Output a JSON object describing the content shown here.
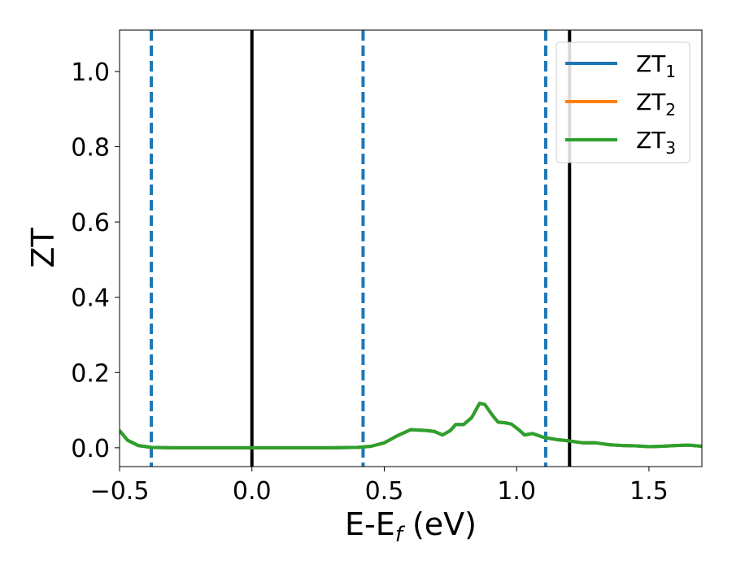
{
  "chart_data": {
    "type": "line",
    "title": "",
    "xlabel_main": "E-E",
    "xlabel_sub": "f",
    "xlabel_tail": " (eV)",
    "ylabel": "ZT",
    "xlim": [
      -0.5,
      1.7
    ],
    "ylim": [
      -0.05,
      1.11
    ],
    "xticks": [
      {
        "value": -0.5,
        "label": "−0.5"
      },
      {
        "value": 0.0,
        "label": "0.0"
      },
      {
        "value": 0.5,
        "label": "0.5"
      },
      {
        "value": 1.0,
        "label": "1.0"
      },
      {
        "value": 1.5,
        "label": "1.5"
      }
    ],
    "yticks": [
      {
        "value": 0.0,
        "label": "0.0"
      },
      {
        "value": 0.2,
        "label": "0.2"
      },
      {
        "value": 0.4,
        "label": "0.4"
      },
      {
        "value": 0.6,
        "label": "0.6"
      },
      {
        "value": 0.8,
        "label": "0.8"
      },
      {
        "value": 1.0,
        "label": "1.0"
      }
    ],
    "legend_position": "top-right",
    "grid": false,
    "series": [
      {
        "name": "ZT",
        "sub": "1",
        "color": "#1f77b4",
        "points": [
          [
            -0.5,
            0.046
          ],
          [
            -0.47,
            0.02
          ],
          [
            -0.43,
            0.006
          ],
          [
            -0.38,
            0.001
          ],
          [
            -0.3,
            0.0
          ],
          [
            0.0,
            0.0
          ],
          [
            0.3,
            0.0
          ],
          [
            0.4,
            0.001
          ],
          [
            0.45,
            0.004
          ],
          [
            0.5,
            0.013
          ],
          [
            0.55,
            0.032
          ],
          [
            0.6,
            0.048
          ],
          [
            0.63,
            0.047
          ],
          [
            0.66,
            0.046
          ],
          [
            0.69,
            0.043
          ],
          [
            0.72,
            0.034
          ],
          [
            0.75,
            0.046
          ],
          [
            0.77,
            0.062
          ],
          [
            0.8,
            0.062
          ],
          [
            0.83,
            0.08
          ],
          [
            0.86,
            0.118
          ],
          [
            0.88,
            0.115
          ],
          [
            0.91,
            0.085
          ],
          [
            0.93,
            0.068
          ],
          [
            0.96,
            0.066
          ],
          [
            0.98,
            0.063
          ],
          [
            1.01,
            0.047
          ],
          [
            1.03,
            0.034
          ],
          [
            1.06,
            0.038
          ],
          [
            1.1,
            0.028
          ],
          [
            1.15,
            0.022
          ],
          [
            1.2,
            0.018
          ],
          [
            1.25,
            0.013
          ],
          [
            1.3,
            0.013
          ],
          [
            1.35,
            0.008
          ],
          [
            1.4,
            0.006
          ],
          [
            1.45,
            0.005
          ],
          [
            1.5,
            0.003
          ],
          [
            1.55,
            0.004
          ],
          [
            1.6,
            0.006
          ],
          [
            1.65,
            0.007
          ],
          [
            1.7,
            0.004
          ]
        ]
      },
      {
        "name": "ZT",
        "sub": "2",
        "color": "#ff7f0e",
        "points": [
          [
            -0.5,
            0.046
          ],
          [
            -0.47,
            0.02
          ],
          [
            -0.43,
            0.006
          ],
          [
            -0.38,
            0.001
          ],
          [
            -0.3,
            0.0
          ],
          [
            0.0,
            0.0
          ],
          [
            0.3,
            0.0
          ],
          [
            0.4,
            0.001
          ],
          [
            0.45,
            0.004
          ],
          [
            0.5,
            0.013
          ],
          [
            0.55,
            0.032
          ],
          [
            0.6,
            0.048
          ],
          [
            0.63,
            0.047
          ],
          [
            0.66,
            0.046
          ],
          [
            0.69,
            0.043
          ],
          [
            0.72,
            0.034
          ],
          [
            0.75,
            0.046
          ],
          [
            0.77,
            0.062
          ],
          [
            0.8,
            0.062
          ],
          [
            0.83,
            0.08
          ],
          [
            0.86,
            0.118
          ],
          [
            0.88,
            0.115
          ],
          [
            0.91,
            0.085
          ],
          [
            0.93,
            0.068
          ],
          [
            0.96,
            0.066
          ],
          [
            0.98,
            0.063
          ],
          [
            1.01,
            0.047
          ],
          [
            1.03,
            0.034
          ],
          [
            1.06,
            0.038
          ],
          [
            1.1,
            0.028
          ],
          [
            1.15,
            0.022
          ],
          [
            1.2,
            0.018
          ],
          [
            1.25,
            0.013
          ],
          [
            1.3,
            0.013
          ],
          [
            1.35,
            0.008
          ],
          [
            1.4,
            0.006
          ],
          [
            1.45,
            0.005
          ],
          [
            1.5,
            0.003
          ],
          [
            1.55,
            0.004
          ],
          [
            1.6,
            0.006
          ],
          [
            1.65,
            0.007
          ],
          [
            1.7,
            0.004
          ]
        ]
      },
      {
        "name": "ZT",
        "sub": "3",
        "color": "#2ca02c",
        "points": [
          [
            -0.5,
            0.046
          ],
          [
            -0.47,
            0.02
          ],
          [
            -0.43,
            0.006
          ],
          [
            -0.38,
            0.001
          ],
          [
            -0.3,
            0.0
          ],
          [
            0.0,
            0.0
          ],
          [
            0.3,
            0.0
          ],
          [
            0.4,
            0.001
          ],
          [
            0.45,
            0.004
          ],
          [
            0.5,
            0.013
          ],
          [
            0.55,
            0.032
          ],
          [
            0.6,
            0.048
          ],
          [
            0.63,
            0.047
          ],
          [
            0.66,
            0.046
          ],
          [
            0.69,
            0.043
          ],
          [
            0.72,
            0.034
          ],
          [
            0.75,
            0.046
          ],
          [
            0.77,
            0.062
          ],
          [
            0.8,
            0.062
          ],
          [
            0.83,
            0.08
          ],
          [
            0.86,
            0.118
          ],
          [
            0.88,
            0.115
          ],
          [
            0.91,
            0.085
          ],
          [
            0.93,
            0.068
          ],
          [
            0.96,
            0.066
          ],
          [
            0.98,
            0.063
          ],
          [
            1.01,
            0.047
          ],
          [
            1.03,
            0.034
          ],
          [
            1.06,
            0.038
          ],
          [
            1.1,
            0.028
          ],
          [
            1.15,
            0.022
          ],
          [
            1.2,
            0.018
          ],
          [
            1.25,
            0.013
          ],
          [
            1.3,
            0.013
          ],
          [
            1.35,
            0.008
          ],
          [
            1.4,
            0.006
          ],
          [
            1.45,
            0.005
          ],
          [
            1.5,
            0.003
          ],
          [
            1.55,
            0.004
          ],
          [
            1.6,
            0.006
          ],
          [
            1.65,
            0.007
          ],
          [
            1.7,
            0.004
          ]
        ]
      }
    ],
    "vlines": [
      {
        "x": -0.38,
        "style": "dashed",
        "color": "#1f77b4"
      },
      {
        "x": 0.0,
        "style": "solid",
        "color": "#000000"
      },
      {
        "x": 0.42,
        "style": "dashed",
        "color": "#1f77b4"
      },
      {
        "x": 1.11,
        "style": "dashed",
        "color": "#1f77b4"
      },
      {
        "x": 1.2,
        "style": "solid",
        "color": "#000000"
      }
    ]
  }
}
